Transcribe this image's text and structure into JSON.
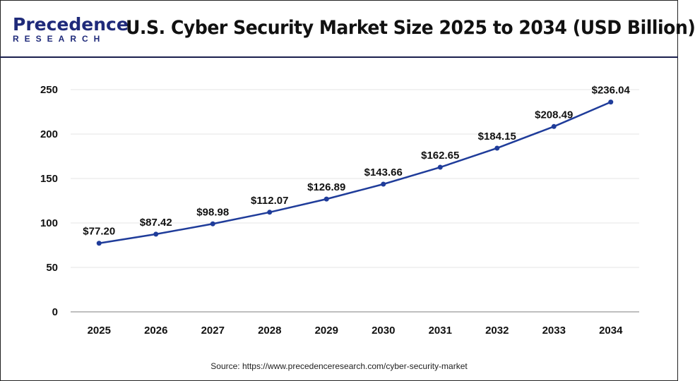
{
  "header": {
    "logo_top": "Precedence",
    "logo_bottom": "RESEARCH",
    "title": "U.S. Cyber Security Market Size 2025 to 2034 (USD Billion)"
  },
  "source": "Source: https://www.precedenceresearch.com/cyber-security-market",
  "colors": {
    "line": "#1f3c9a",
    "logo": "#1f2a7a",
    "gridline": "#e6e6e6",
    "axis": "#bfbfbf"
  },
  "chart_data": {
    "type": "line",
    "title": "U.S. Cyber Security Market Size 2025 to 2034 (USD Billion)",
    "xlabel": "",
    "ylabel": "",
    "categories": [
      "2025",
      "2026",
      "2027",
      "2028",
      "2029",
      "2030",
      "2031",
      "2032",
      "2033",
      "2034"
    ],
    "values": [
      77.2,
      87.42,
      98.98,
      112.07,
      126.89,
      143.66,
      162.65,
      184.15,
      208.49,
      236.04
    ],
    "data_labels": [
      "$77.20",
      "$87.42",
      "$98.98",
      "$112.07",
      "$126.89",
      "$143.66",
      "$162.65",
      "$184.15",
      "$208.49",
      "$236.04"
    ],
    "ylim": [
      0,
      250
    ],
    "yticks": [
      0,
      50,
      100,
      150,
      200,
      250
    ],
    "grid": true,
    "legend": "none"
  }
}
